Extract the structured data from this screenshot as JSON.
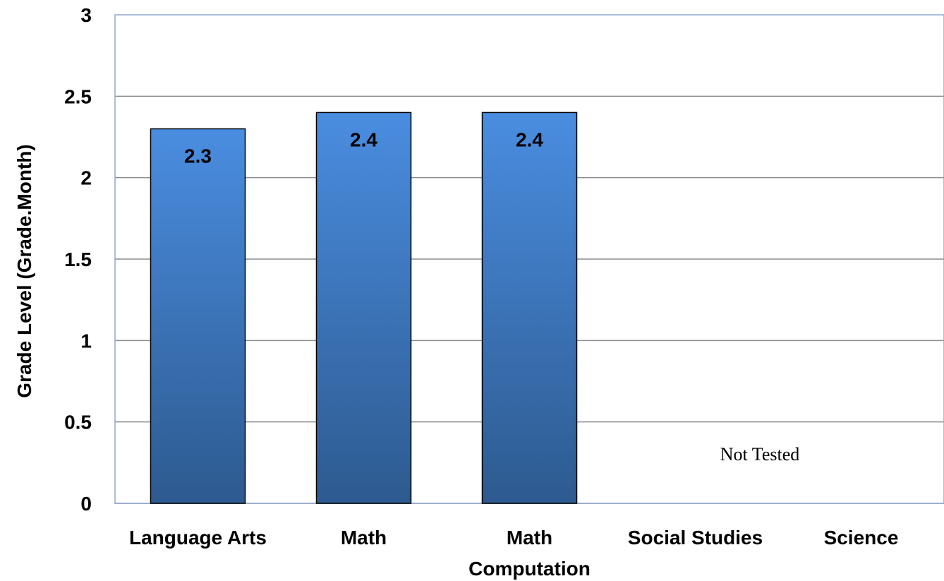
{
  "chart_data": {
    "type": "bar",
    "categories": [
      [
        "Language Arts"
      ],
      [
        "Math"
      ],
      [
        "Math",
        "Computation"
      ],
      [
        "Social Studies"
      ],
      [
        "Science"
      ]
    ],
    "values": [
      2.3,
      2.4,
      2.4,
      null,
      null
    ],
    "data_labels": [
      "2.3",
      "2.4",
      "2.4",
      "",
      ""
    ],
    "ylabel": "Grade Level (Grade.Month)",
    "xlabel": "",
    "title": "",
    "ylim": [
      0,
      3
    ],
    "yticks": [
      "0",
      "0.5",
      "1",
      "1.5",
      "2",
      "2.5",
      "3"
    ],
    "ytick_values": [
      0,
      0.5,
      1,
      1.5,
      2,
      2.5,
      3
    ],
    "annotation": "Not Tested",
    "grid": true,
    "legend": "none",
    "colors": {
      "bar_top": "#4a8de0",
      "bar_bottom": "#2d5a8f",
      "bar_stroke": "#000000",
      "grid": "#8c8c8c",
      "plot_border": "#8fa8cf"
    }
  }
}
